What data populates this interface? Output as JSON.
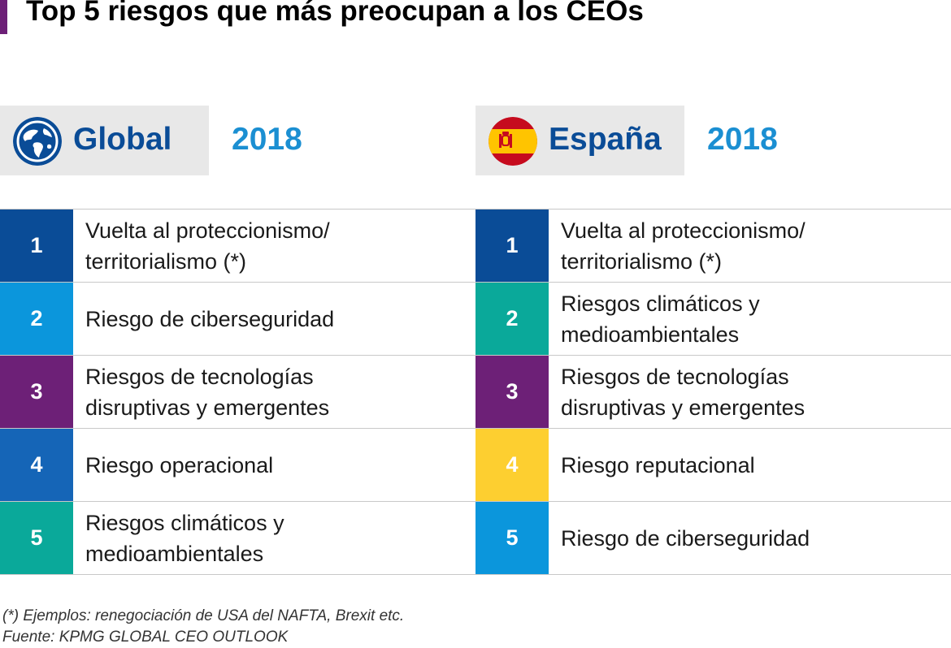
{
  "title": "Top 5 riesgos que más preocupan a los CEOs",
  "colors": {
    "navy": "#0a4c97",
    "cyan": "#0b96dc",
    "teal": "#0aa99a",
    "purple": "#6d2077",
    "blue": "#1565b7",
    "yellow": "#fdcf30",
    "header_bg": "#e8e8e8",
    "year": "#1b8fd2"
  },
  "panels": [
    {
      "label": "Global",
      "year": "2018",
      "icon": "globe-icon",
      "rows": [
        {
          "rank": "1",
          "text": "Vuelta al proteccionismo/\nterritorialismo (*)",
          "color": "#0a4c97"
        },
        {
          "rank": "2",
          "text": "Riesgo de ciberseguridad",
          "color": "#0b96dc"
        },
        {
          "rank": "3",
          "text": "Riesgos de tecnologías\ndisruptivas y emergentes",
          "color": "#6d2077"
        },
        {
          "rank": "4",
          "text": "Riesgo operacional",
          "color": "#1565b7"
        },
        {
          "rank": "5",
          "text": "Riesgos climáticos y\nmedioambientales",
          "color": "#0aa99a"
        }
      ]
    },
    {
      "label": "España",
      "year": "2018",
      "icon": "spain-flag-icon",
      "rows": [
        {
          "rank": "1",
          "text": "Vuelta al proteccionismo/\nterritorialismo (*)",
          "color": "#0a4c97"
        },
        {
          "rank": "2",
          "text": "Riesgos climáticos y\nmedioambientales",
          "color": "#0aa99a"
        },
        {
          "rank": "3",
          "text": "Riesgos de tecnologías\ndisruptivas y emergentes",
          "color": "#6d2077"
        },
        {
          "rank": "4",
          "text": "Riesgo reputacional",
          "color": "#fdcf30"
        },
        {
          "rank": "5",
          "text": "Riesgo de ciberseguridad",
          "color": "#0b96dc"
        }
      ]
    }
  ],
  "footnote": "(*) Ejemplos: renegociación de USA del NAFTA, Brexit etc.",
  "source": "Fuente: KPMG GLOBAL CEO OUTLOOK"
}
